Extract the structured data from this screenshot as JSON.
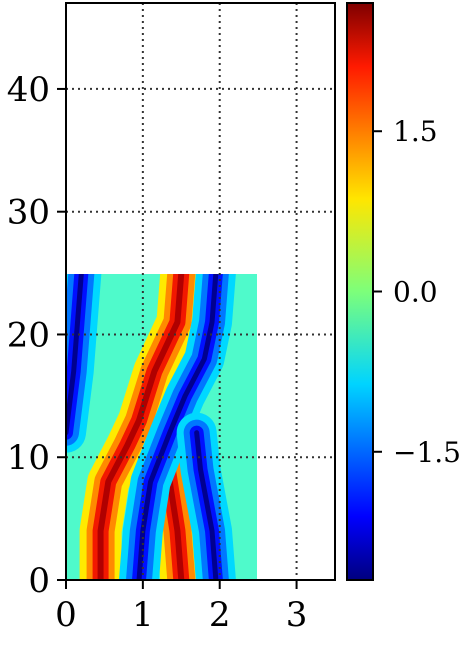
{
  "chart_data": {
    "type": "heatmap",
    "title": "",
    "xlabel": "",
    "ylabel": "",
    "xlim": [
      0,
      3.5
    ],
    "ylim": [
      0,
      47
    ],
    "data_extent": {
      "x": [
        0,
        2.5
      ],
      "y": [
        0,
        25
      ]
    },
    "xticks": [
      0,
      1,
      2,
      3
    ],
    "xtick_labels": [
      "0",
      "1",
      "2",
      "3"
    ],
    "yticks": [
      0,
      10,
      20,
      30,
      40
    ],
    "ytick_labels": [
      "0",
      "10",
      "20",
      "30",
      "40"
    ],
    "grid": true,
    "grid_style": "dotted",
    "colormap": "jet",
    "colorbar": {
      "range": [
        -2.7,
        2.7
      ],
      "ticks": [
        -1.5,
        0.0,
        1.5
      ],
      "tick_labels": [
        "−1.5",
        "0.0",
        "1.5"
      ]
    },
    "ridges": [
      {
        "name": "positive-ridge-left",
        "sign": "positive",
        "points": [
          [
            0.45,
            0
          ],
          [
            0.45,
            4
          ],
          [
            0.55,
            8
          ],
          [
            0.8,
            11
          ],
          [
            0.95,
            13
          ],
          [
            1.15,
            17
          ],
          [
            1.45,
            21
          ],
          [
            1.5,
            25
          ]
        ]
      },
      {
        "name": "positive-ridge-lower",
        "sign": "positive",
        "points": [
          [
            1.5,
            0
          ],
          [
            1.45,
            4
          ],
          [
            1.35,
            8
          ],
          [
            1.3,
            10
          ]
        ]
      },
      {
        "name": "negative-ridge-left",
        "sign": "negative",
        "points": [
          [
            0.0,
            12
          ],
          [
            0.1,
            17
          ],
          [
            0.15,
            21
          ],
          [
            0.2,
            25
          ]
        ]
      },
      {
        "name": "negative-ridge-mid",
        "sign": "negative",
        "points": [
          [
            0.95,
            0
          ],
          [
            1.0,
            4
          ],
          [
            1.1,
            8
          ],
          [
            1.35,
            12
          ],
          [
            1.55,
            15
          ],
          [
            1.8,
            18
          ],
          [
            1.9,
            21
          ],
          [
            1.95,
            25
          ]
        ]
      },
      {
        "name": "negative-ridge-right",
        "sign": "negative",
        "points": [
          [
            1.95,
            0
          ],
          [
            1.9,
            4
          ],
          [
            1.75,
            9
          ],
          [
            1.7,
            12
          ]
        ]
      }
    ]
  }
}
